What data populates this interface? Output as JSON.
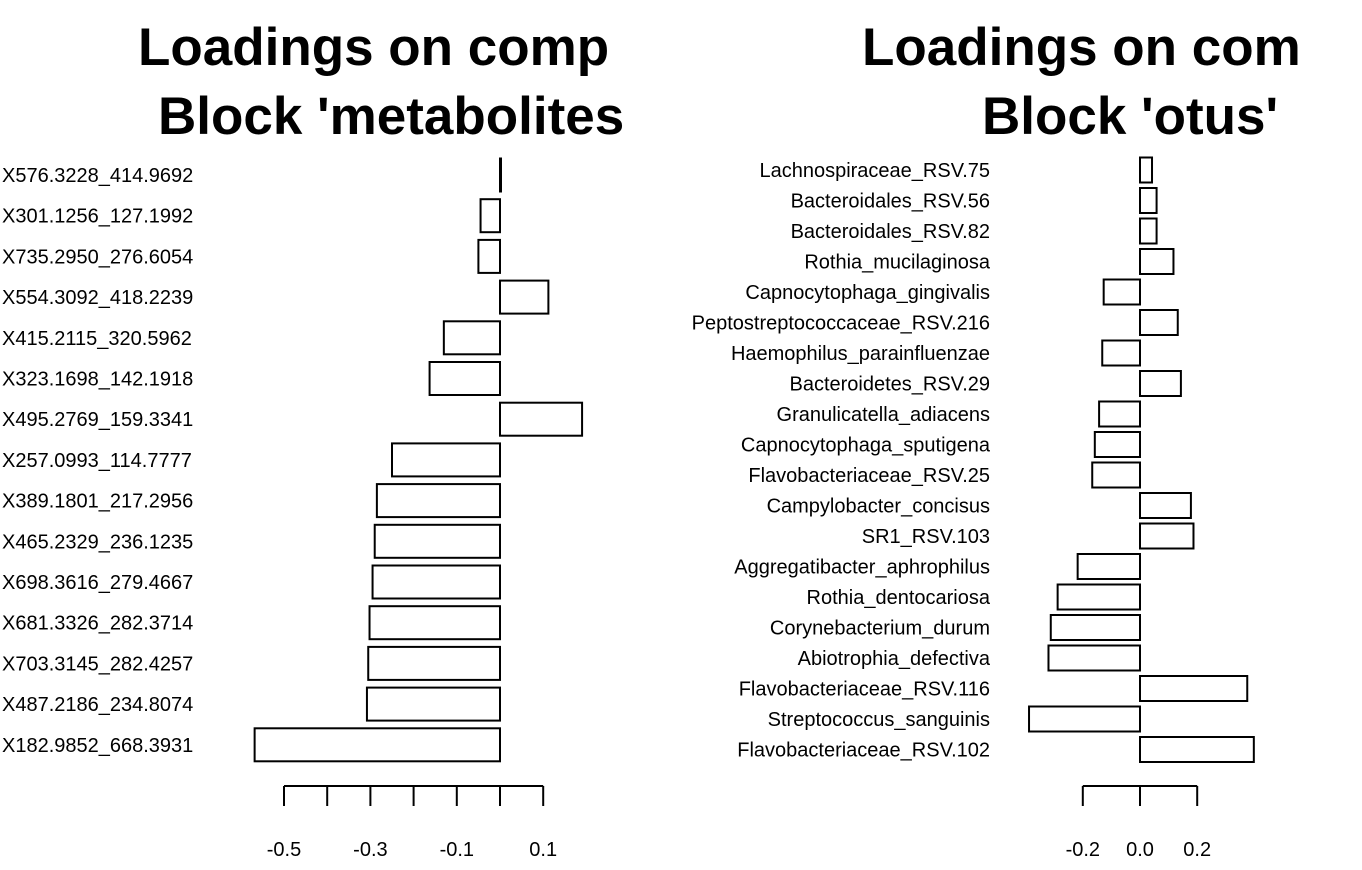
{
  "chart_data": [
    {
      "type": "bar",
      "orientation": "horizontal",
      "title_line1": "Loadings on comp",
      "title_line2": "Block 'metabolites",
      "categories": [
        "X576.3228_414.9692",
        "X301.1256_127.1992",
        "X735.2950_276.6054",
        "X554.3092_418.2239",
        "X415.2115_320.5962",
        "X323.1698_142.1918",
        "X495.2769_159.3341",
        "X257.0993_114.7777",
        "X389.1801_217.2956",
        "X465.2329_236.1235",
        "X698.3616_279.4667",
        "X681.3326_282.3714",
        "X703.3145_282.4257",
        "X487.2186_234.8074",
        "X182.9852_668.3931"
      ],
      "values": [
        0.0,
        -0.045,
        -0.05,
        0.112,
        -0.13,
        -0.163,
        0.19,
        -0.25,
        -0.285,
        -0.29,
        -0.295,
        -0.302,
        -0.305,
        -0.308,
        -0.568
      ],
      "xticks": [
        -0.5,
        -0.4,
        -0.3,
        -0.2,
        -0.1,
        0.0,
        0.1
      ],
      "xtick_labels": [
        "-0.5",
        "",
        "-0.3",
        "",
        "-0.1",
        "",
        "0.1"
      ]
    },
    {
      "type": "bar",
      "orientation": "horizontal",
      "title_line1": "Loadings on com",
      "title_line2": "Block 'otus'",
      "categories": [
        "Lachnospiraceae_RSV.75",
        "Bacteroidales_RSV.56",
        "Bacteroidales_RSV.82",
        "Rothia_mucilaginosa",
        "Capnocytophaga_gingivalis",
        "Peptostreptococcaceae_RSV.216",
        "Haemophilus_parainfluenzae",
        "Bacteroidetes_RSV.29",
        "Granulicatella_adiacens",
        "Capnocytophaga_sputigena",
        "Flavobacteriaceae_RSV.25",
        "Campylobacter_concisus",
        "SR1_RSV.103",
        "Aggregatibacter_aphrophilus",
        "Rothia_dentocariosa",
        "Corynebacterium_durum",
        "Abiotrophia_defectiva",
        "Flavobacteriaceae_RSV.116",
        "Streptococcus_sanguinis",
        "Flavobacteriaceae_RSV.102"
      ],
      "values": [
        0.042,
        0.058,
        0.058,
        0.117,
        -0.127,
        0.132,
        -0.132,
        0.143,
        -0.143,
        -0.158,
        -0.167,
        0.178,
        0.187,
        -0.218,
        -0.288,
        -0.312,
        -0.32,
        0.375,
        -0.388,
        0.398
      ],
      "xticks": [
        -0.2,
        0.0,
        0.2
      ],
      "xtick_labels": [
        "-0.2",
        "0.0",
        "0.2"
      ]
    }
  ]
}
